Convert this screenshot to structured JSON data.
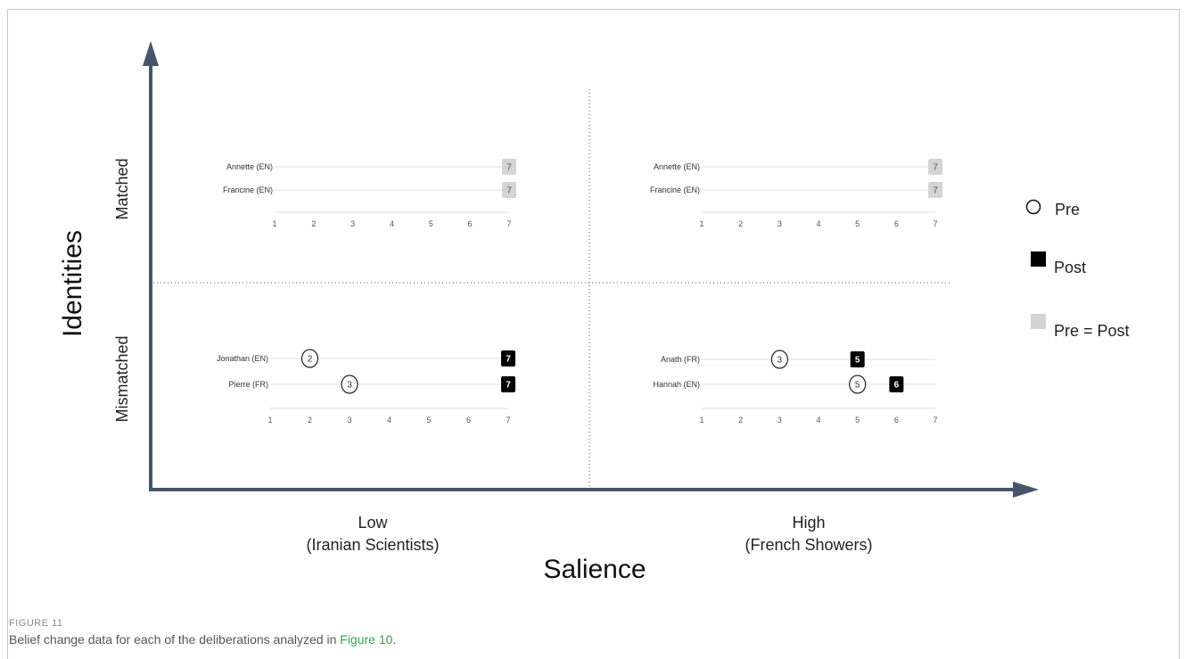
{
  "chart_data": {
    "type": "scatter",
    "x_axis": {
      "label": "Salience",
      "categories": [
        "Low\n(Iranian Scientists)",
        "High\n(French Showers)"
      ]
    },
    "y_axis": {
      "label": "Identities",
      "categories": [
        "Mismatched",
        "Matched"
      ]
    },
    "legend": {
      "placement": "right",
      "entries": [
        {
          "key": "pre",
          "label": "Pre",
          "marker": "open-circle"
        },
        {
          "key": "post",
          "label": "Post",
          "marker": "black-square"
        },
        {
          "key": "same",
          "label": "Pre = Post",
          "marker": "gray-square"
        }
      ]
    },
    "scale": {
      "min": 1,
      "max": 7,
      "ticks": [
        1,
        2,
        3,
        4,
        5,
        6,
        7
      ]
    },
    "panels": [
      {
        "identities": "Matched",
        "salience": "Low",
        "participants": [
          {
            "name": "Annette (EN)",
            "pre": 7,
            "post": 7
          },
          {
            "name": "Francine (EN)",
            "pre": 7,
            "post": 7
          }
        ]
      },
      {
        "identities": "Matched",
        "salience": "High",
        "participants": [
          {
            "name": "Annette (EN)",
            "pre": 7,
            "post": 7
          },
          {
            "name": "Francine (EN)",
            "pre": 7,
            "post": 7
          }
        ]
      },
      {
        "identities": "Mismatched",
        "salience": "Low",
        "participants": [
          {
            "name": "Jonathan (EN)",
            "pre": 2,
            "post": 7
          },
          {
            "name": "Pierre (FR)",
            "pre": 3,
            "post": 7
          }
        ]
      },
      {
        "identities": "Mismatched",
        "salience": "High",
        "participants": [
          {
            "name": "Anath (FR)",
            "pre": 3,
            "post": 5
          },
          {
            "name": "Hannah (EN)",
            "pre": 5,
            "post": 6
          }
        ]
      }
    ],
    "colors": {
      "axis": "#47546a",
      "post": "#000000",
      "same": "#d4d4d4",
      "track": "#dcdcdc",
      "text": "#555555"
    }
  },
  "caption": {
    "label": "FIGURE 11",
    "text": "Belief change data for each of the deliberations analyzed in ",
    "link": "Figure 10",
    "end": "."
  }
}
